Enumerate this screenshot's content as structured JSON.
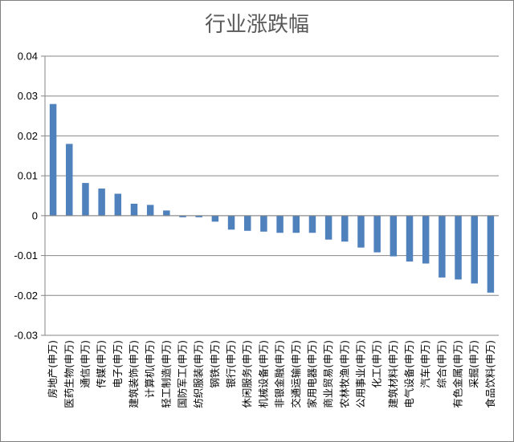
{
  "chart_data": {
    "type": "bar",
    "title": "行业涨跌幅",
    "xlabel": "",
    "ylabel": "",
    "ylim": [
      -0.03,
      0.04
    ],
    "yticks": [
      0.04,
      0.03,
      0.02,
      0.01,
      0,
      -0.01,
      -0.02,
      -0.03
    ],
    "ytick_labels": [
      "0.04",
      "0.03",
      "0.02",
      "0.01",
      "0",
      "-0.01",
      "-0.02",
      "-0.03"
    ],
    "grid": true,
    "legend": "none",
    "bar_color": "#4f81bd",
    "categories": [
      "房地产(申万)",
      "医药生物(申万)",
      "通信(申万)",
      "传媒(申万)",
      "电子(申万)",
      "建筑装饰(申万)",
      "计算机(申万)",
      "轻工制造(申万)",
      "国防军工(申万)",
      "纺织服装(申万)",
      "钢铁(申万)",
      "银行(申万)",
      "休闲服务(申万)",
      "机械设备(申万)",
      "非银金融(申万)",
      "交通运输(申万)",
      "家用电器(申万)",
      "商业贸易(申万)",
      "农林牧渔(申万)",
      "公用事业(申万)",
      "化工(申万)",
      "建筑材料(申万)",
      "电气设备(申万)",
      "汽车(申万)",
      "综合(申万)",
      "有色金属(申万)",
      "采掘(申万)",
      "食品饮料(申万)"
    ],
    "values": [
      0.028,
      0.018,
      0.0082,
      0.0068,
      0.0055,
      0.003,
      0.0027,
      0.0013,
      -0.0004,
      -0.0004,
      -0.0015,
      -0.0035,
      -0.0038,
      -0.004,
      -0.0043,
      -0.0043,
      -0.0043,
      -0.006,
      -0.0065,
      -0.008,
      -0.0092,
      -0.0102,
      -0.0115,
      -0.012,
      -0.0155,
      -0.016,
      -0.017,
      -0.0193
    ]
  }
}
